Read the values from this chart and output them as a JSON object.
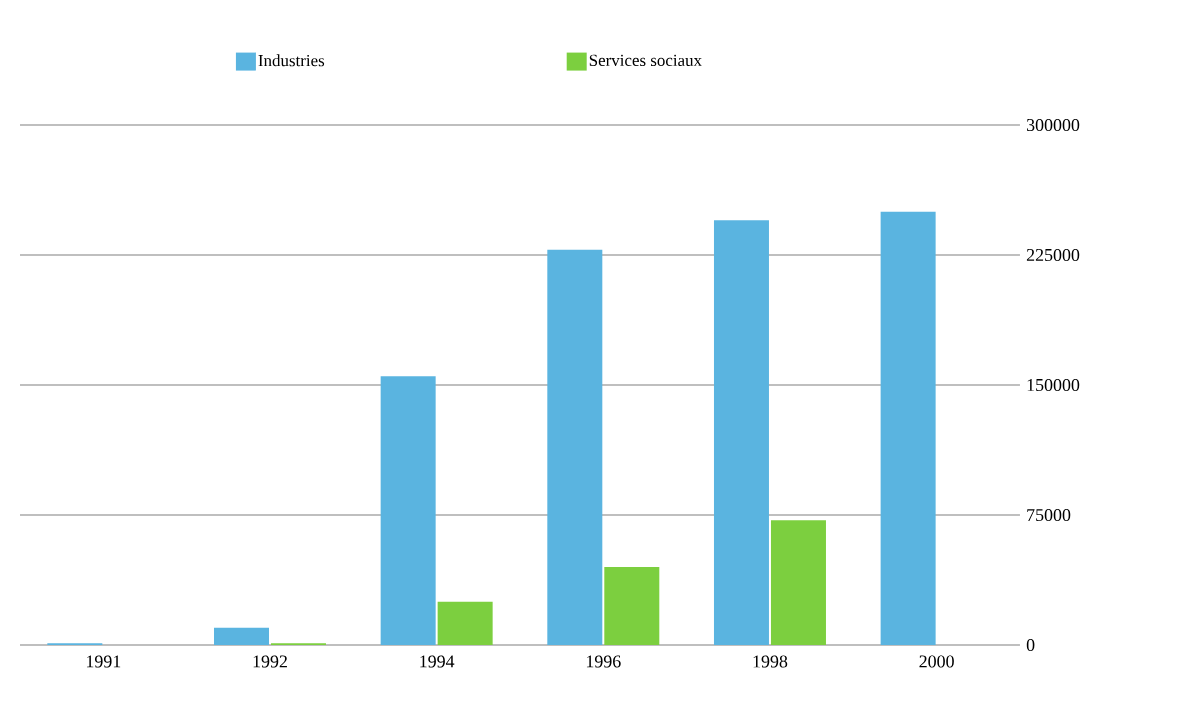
{
  "chart_data": {
    "type": "bar",
    "categories": [
      "1991",
      "1992",
      "1994",
      "1996",
      "1998",
      "2000"
    ],
    "series": [
      {
        "name": "Industries",
        "color": "#5ab4e0",
        "values": [
          1000,
          10000,
          155000,
          228000,
          245000,
          250000
        ]
      },
      {
        "name": "Services sociaux",
        "color": "#7ccf3f",
        "values": [
          null,
          1000,
          25000,
          45000,
          72000,
          null
        ]
      }
    ],
    "ylim": [
      0,
      300000
    ],
    "yticks": [
      0,
      75000,
      150000,
      225000,
      300000
    ],
    "grid": "y",
    "legend": "top"
  }
}
